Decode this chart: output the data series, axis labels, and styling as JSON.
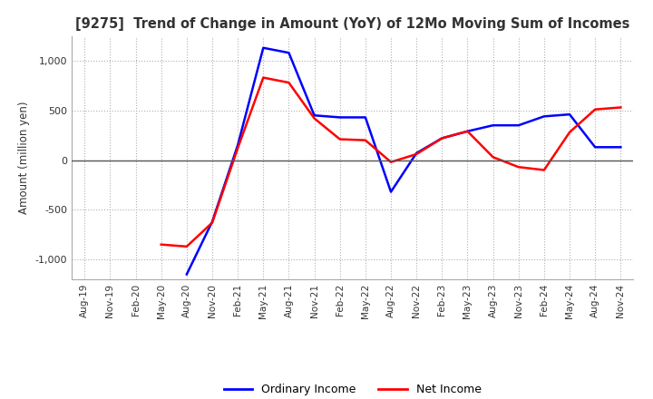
{
  "title": "[9275]  Trend of Change in Amount (YoY) of 12Mo Moving Sum of Incomes",
  "ylabel": "Amount (million yen)",
  "background_color": "#ffffff",
  "grid_color": "#b0b0b0",
  "ordinary_income_color": "#0000ff",
  "net_income_color": "#ff0000",
  "legend_labels": [
    "Ordinary Income",
    "Net Income"
  ],
  "ylim": [
    -1200,
    1250
  ],
  "yticks": [
    -1000,
    -500,
    0,
    500,
    1000
  ],
  "x_labels": [
    "Aug-19",
    "Nov-19",
    "Feb-20",
    "May-20",
    "Aug-20",
    "Nov-20",
    "Feb-21",
    "May-21",
    "Aug-21",
    "Nov-21",
    "Feb-22",
    "May-22",
    "Aug-22",
    "Nov-22",
    "Feb-23",
    "May-23",
    "Aug-23",
    "Nov-23",
    "Feb-24",
    "May-24",
    "Aug-24",
    "Nov-24"
  ],
  "ordinary_income": [
    null,
    null,
    null,
    null,
    -1150,
    -620,
    150,
    1130,
    1080,
    450,
    430,
    430,
    -320,
    70,
    220,
    290,
    350,
    350,
    440,
    460,
    130,
    130
  ],
  "net_income": [
    null,
    null,
    null,
    -850,
    -870,
    -630,
    120,
    830,
    780,
    420,
    210,
    200,
    -20,
    60,
    220,
    290,
    30,
    -70,
    -100,
    280,
    510,
    530
  ]
}
